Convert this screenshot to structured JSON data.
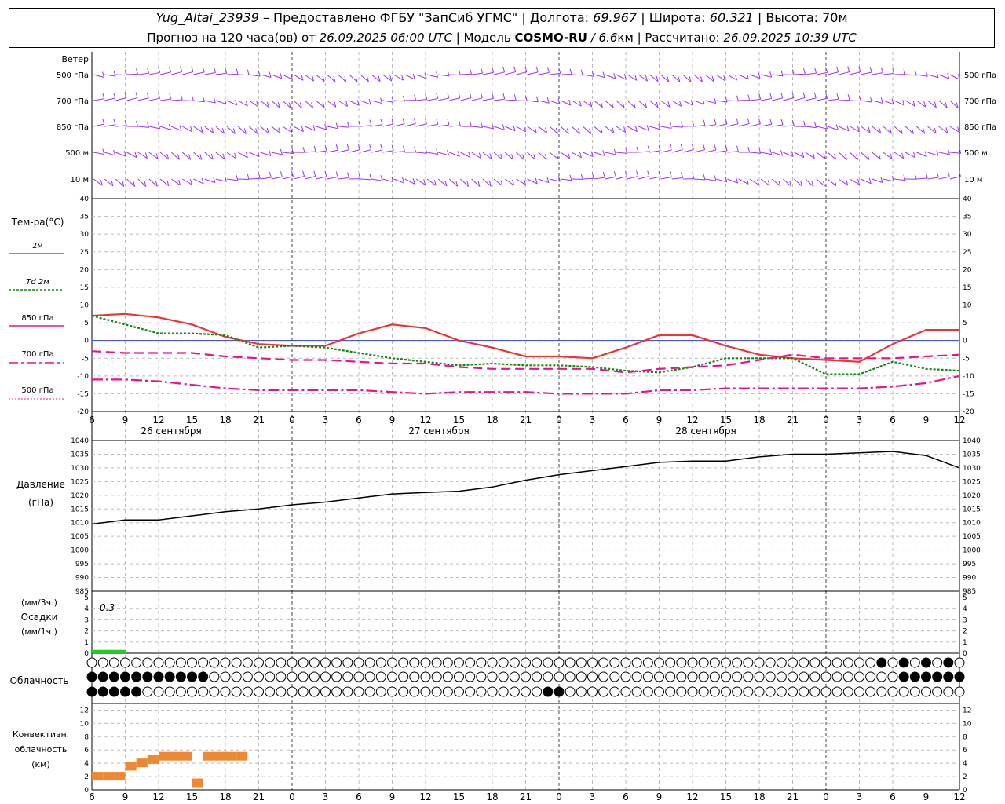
{
  "header": {
    "line1": {
      "station": "Yug_Altai_23939",
      "provider": " – Предоставлено ФГБУ \"ЗапСиб УГМС\" | Долгота: ",
      "lon": "69.967",
      "sep_lat": " | Широта: ",
      "lat": "60.321",
      "sep_alt": " | Высота: ",
      "alt": "70м"
    },
    "line2": {
      "prefix": "Прогноз на 120 часа(ов) от ",
      "init": "26.09.2025 06:00 UTC",
      "model_label": "  | Модель ",
      "model": "COSMO-RU",
      "res": " / 6.6",
      "res_unit": "км",
      "calc_label": " | Рассчитано: ",
      "calc": "26.09.2025 10:39 UTC"
    }
  },
  "panels": {
    "wind": {
      "title": "Ветер",
      "levels": [
        "500 гПа",
        "700 гПа",
        "850 гПа",
        "500 м",
        "10  м"
      ]
    },
    "temp": {
      "title": "Тем-ра(°С)",
      "legend": [
        "2м",
        "Td 2м",
        "850 гПа",
        "700 гПа",
        "500 гПа"
      ]
    },
    "pressure": {
      "title": "Давление",
      "unit": "(гПа)"
    },
    "precip": {
      "unit_top": "(мм/3ч.)",
      "title": "Осадки",
      "unit_bottom": "(мм/1ч.)",
      "annotation": "0.3"
    },
    "cloud": {
      "title": "Облачность"
    },
    "conv": {
      "title": "Конвективн.",
      "title2": "облачность",
      "unit": "(км)"
    }
  },
  "time_axis": {
    "hour_labels": [
      "6",
      "9",
      "12",
      "15",
      "18",
      "21",
      "0",
      "3",
      "6",
      "9",
      "12",
      "15",
      "18",
      "21",
      "0",
      "3",
      "6",
      "9",
      "12",
      "15",
      "18",
      "21",
      "0",
      "3",
      "6",
      "9",
      "12"
    ],
    "dates": [
      "26 сентября",
      "27 сентября",
      "28 сентября"
    ]
  },
  "chart_data": [
    {
      "type": "line",
      "name": "temperature",
      "x_hours": [
        0,
        3,
        6,
        9,
        12,
        15,
        18,
        21,
        24,
        27,
        30,
        33,
        36,
        39,
        42,
        45,
        48,
        51,
        54,
        57,
        60,
        63,
        66,
        69,
        72,
        75,
        78
      ],
      "ylim": [
        -20,
        40
      ],
      "yticks": [
        40,
        35,
        30,
        25,
        20,
        15,
        10,
        5,
        0,
        -5,
        -10,
        -15,
        -20
      ],
      "series": [
        {
          "name": "2м",
          "values": [
            7,
            7.5,
            6.5,
            4.5,
            1,
            -1,
            -1.5,
            -1.5,
            2,
            4.5,
            3.5,
            0,
            -2,
            -4.5,
            -4.5,
            -5,
            -2,
            1.5,
            1.5,
            -1.5,
            -4,
            -5,
            -5.5,
            -6,
            -1,
            3,
            3
          ]
        },
        {
          "name": "Td 2м",
          "values": [
            7,
            4.5,
            2,
            2,
            1.5,
            -2,
            -1.5,
            -2,
            -3.5,
            -5,
            -6,
            -7,
            -6.5,
            -7,
            -7,
            -7.5,
            -8.5,
            -9,
            -7.5,
            -5,
            -5,
            -5,
            -9.5,
            -9.5,
            -6,
            -8,
            -8.5
          ]
        },
        {
          "name": "850 гПа",
          "values": [
            -3,
            -3.5,
            -3.5,
            -3.5,
            -4.5,
            -5,
            -5.5,
            -5.5,
            -6,
            -6.5,
            -6.5,
            -7.5,
            -8,
            -8,
            -8,
            -8,
            -9,
            -8,
            -7.5,
            -7,
            -5.5,
            -4,
            -5,
            -5,
            -5,
            -4.5,
            -4
          ]
        },
        {
          "name": "700 гПа",
          "values": [
            -11,
            -11,
            -11.5,
            -12.5,
            -13.5,
            -14,
            -14,
            -14,
            -14,
            -14.5,
            -15,
            -14.5,
            -14.5,
            -14.5,
            -15,
            -15,
            -15,
            -14,
            -14,
            -13.5,
            -13.5,
            -13.5,
            -13.5,
            -13.5,
            -13,
            -12,
            -10
          ]
        }
      ]
    },
    {
      "type": "line",
      "name": "pressure",
      "x_hours": [
        0,
        3,
        6,
        9,
        12,
        15,
        18,
        21,
        24,
        27,
        30,
        33,
        36,
        39,
        42,
        45,
        48,
        51,
        54,
        57,
        60,
        63,
        66,
        69,
        72,
        75,
        78
      ],
      "ylim": [
        985,
        1040
      ],
      "yticks": [
        1040,
        1035,
        1030,
        1025,
        1020,
        1015,
        1010,
        1005,
        1000,
        995,
        990,
        985
      ],
      "series": [
        {
          "name": "",
          "values": [
            1009.5,
            1011,
            1011,
            1012.5,
            1014,
            1015,
            1016.5,
            1017.5,
            1019,
            1020.5,
            1021,
            1021.5,
            1023,
            1025.5,
            1027.5,
            1029,
            1030.5,
            1032,
            1032.5,
            1032.5,
            1034,
            1035,
            1035,
            1035.5,
            1036,
            1034.5,
            1030
          ]
        }
      ]
    },
    {
      "type": "bar",
      "name": "precipitation",
      "ylim": [
        0,
        5
      ],
      "yticks": [
        5,
        4,
        3,
        2,
        1,
        0
      ],
      "x_hours": [
        0,
        1,
        2
      ],
      "values": [
        0.3,
        0.3,
        0.3
      ]
    },
    {
      "type": "bar",
      "name": "convective_cloud_km",
      "ylim": [
        0,
        13
      ],
      "yticks": [
        12,
        10,
        8,
        6,
        4,
        2,
        0
      ],
      "x_hours": [
        0,
        1,
        2,
        3,
        4,
        5,
        6,
        7,
        8,
        9,
        10,
        11,
        12,
        13
      ],
      "values": [
        2,
        2,
        2,
        3.5,
        4,
        4.5,
        5,
        5,
        5,
        1,
        5,
        5,
        5,
        5
      ]
    }
  ],
  "colors": {
    "wind": "#9933ff",
    "t2m": "#ee3333",
    "td": "#118811",
    "p850": "#ee1188",
    "pressure": "#000000",
    "precip": "#22cc22",
    "conv": "#ee8833",
    "zero_line": "#3344cc"
  }
}
